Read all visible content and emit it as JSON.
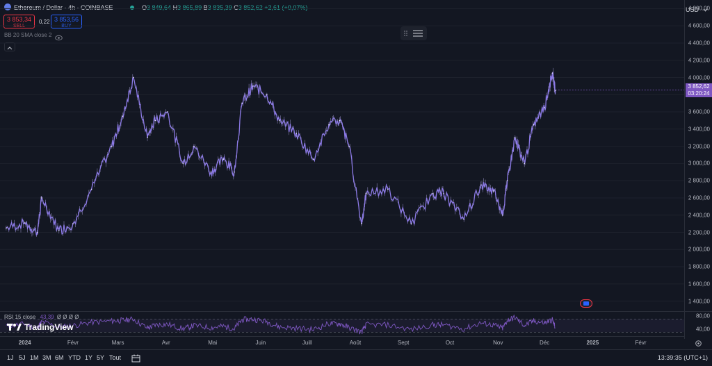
{
  "header": {
    "symbol": "Ethereum / Dollar · 4h · COINBASE",
    "ohlc": {
      "o_label": "O",
      "o_value": "3 849,64",
      "h_label": "H",
      "h_value": "3 865,89",
      "b_label": "B",
      "b_value": "3 835,39",
      "c_label": "C",
      "c_value": "3 852,62",
      "change": "+2,61 (+0,07%)"
    },
    "sell_price": "3 853,34",
    "sell_label": "SELL",
    "spread": "0,22",
    "buy_price": "3 853,56",
    "buy_label": "BUY",
    "indicator_label": "BB 20 SMA close 2",
    "currency": "USD"
  },
  "price_axis": {
    "ticks": [
      "4 800,00",
      "4 600,00",
      "4 400,00",
      "4 200,00",
      "4 000,00",
      "3 800,00",
      "3 600,00",
      "3 400,00",
      "3 200,00",
      "3 000,00",
      "2 800,00",
      "2 600,00",
      "2 400,00",
      "2 200,00",
      "2 000,00",
      "1 800,00",
      "1 600,00",
      "1 400,00"
    ],
    "current_price": "3 852,62",
    "countdown": "03:20:24"
  },
  "rsi": {
    "label": "RSI 15 close",
    "value": "43,39",
    "nan_values": "Ø Ø Ø Ø",
    "ticks": [
      "80,00",
      "40,00"
    ]
  },
  "time_axis": {
    "labels": [
      "2024",
      "Févr",
      "Mars",
      "Avr",
      "Mai",
      "Juin",
      "Juill",
      "Août",
      "Sept",
      "Oct",
      "Nov",
      "Déc",
      "2025",
      "Févr"
    ]
  },
  "bottom_bar": {
    "ranges": [
      "1J",
      "5J",
      "1M",
      "3M",
      "6M",
      "YTD",
      "1Y",
      "5Y",
      "Tout"
    ],
    "clock": "13:39:35 (UTC+1)"
  },
  "logo": {
    "text": "TradingView"
  },
  "colors": {
    "background": "#131722",
    "candle": "#8c7ae6",
    "sell": "#f23645",
    "buy": "#2962ff",
    "price_label": "#7e57c2",
    "rsi_line": "#7e57c2",
    "ohlc_text": "#26a69a"
  },
  "chart_data": {
    "type": "line",
    "title": "",
    "xlabel": "",
    "ylabel": "",
    "ylim": [
      1300,
      4900
    ],
    "x_range": [
      "2023-12-16",
      "2025-03-01"
    ],
    "x": [
      "2023-12-20",
      "2024-01-01",
      "2024-01-09",
      "2024-01-12",
      "2024-01-23",
      "2024-02-01",
      "2024-02-13",
      "2024-02-26",
      "2024-03-04",
      "2024-03-11",
      "2024-03-20",
      "2024-03-25",
      "2024-04-02",
      "2024-04-12",
      "2024-04-19",
      "2024-04-30",
      "2024-05-08",
      "2024-05-15",
      "2024-05-20",
      "2024-05-27",
      "2024-06-05",
      "2024-06-13",
      "2024-06-24",
      "2024-07-05",
      "2024-07-15",
      "2024-07-22",
      "2024-07-28",
      "2024-08-05",
      "2024-08-08",
      "2024-08-22",
      "2024-09-06",
      "2024-09-20",
      "2024-09-27",
      "2024-10-10",
      "2024-10-21",
      "2024-10-29",
      "2024-11-04",
      "2024-11-07",
      "2024-11-12",
      "2024-11-18",
      "2024-11-24",
      "2024-12-01",
      "2024-12-06",
      "2024-12-08"
    ],
    "values": [
      2250,
      2310,
      2200,
      2600,
      2220,
      2300,
      2700,
      3200,
      3550,
      4000,
      3300,
      3500,
      3600,
      3000,
      3200,
      2900,
      3050,
      2900,
      3700,
      3900,
      3800,
      3500,
      3350,
      3050,
      3450,
      3500,
      3200,
      2300,
      2650,
      2700,
      2300,
      2650,
      2650,
      2350,
      2750,
      2680,
      2400,
      2800,
      3300,
      3000,
      3450,
      3650,
      4050,
      3850
    ],
    "rsi_values": [
      48,
      55,
      42,
      62,
      45,
      50,
      60,
      64,
      66,
      70,
      42,
      52,
      54,
      40,
      50,
      44,
      48,
      40,
      68,
      70,
      62,
      46,
      42,
      38,
      56,
      56,
      44,
      30,
      52,
      52,
      38,
      52,
      52,
      40,
      58,
      52,
      42,
      66,
      75,
      50,
      64,
      58,
      68,
      43
    ],
    "rsi_ylim": [
      20,
      90
    ]
  }
}
